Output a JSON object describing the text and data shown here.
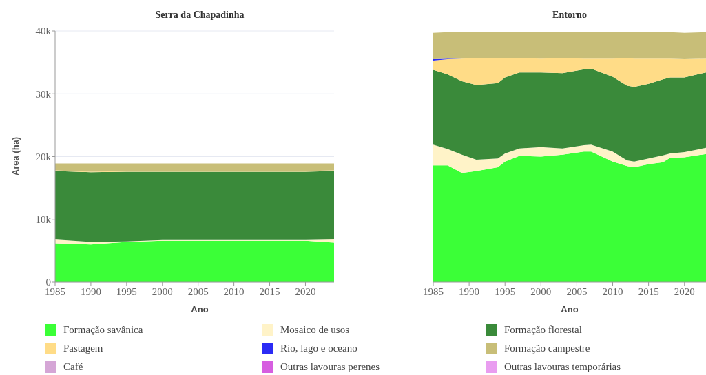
{
  "chart_data": [
    {
      "type": "area",
      "title": "Serra da Chapadinha",
      "xlabel": "Ano",
      "ylabel": "Area (ha)",
      "stacked": true,
      "grid": "y",
      "legend": "bottom",
      "xlim": [
        1985,
        2024
      ],
      "xticks": [
        1985,
        1990,
        1995,
        2000,
        2005,
        2010,
        2015,
        2020
      ],
      "ylim": [
        0,
        40000
      ],
      "yticks": [
        0,
        {
          "value": 10000,
          "label": "10k"
        },
        {
          "value": 20000,
          "label": "20k"
        },
        {
          "value": 30000,
          "label": "30k"
        },
        {
          "value": 40000,
          "label": "40k"
        }
      ],
      "x": [
        1985,
        1990,
        1995,
        2000,
        2005,
        2010,
        2015,
        2020,
        2024
      ],
      "series": [
        {
          "name": "Formação savânica",
          "color": "#3bff37",
          "values": [
            6200,
            6000,
            6400,
            6600,
            6600,
            6600,
            6600,
            6600,
            6300
          ]
        },
        {
          "name": "Mosaico de usos",
          "color": "#fff3c8",
          "values": [
            600,
            400,
            100,
            100,
            100,
            100,
            100,
            100,
            500
          ]
        },
        {
          "name": "Formação florestal",
          "color": "#3a8a3a",
          "values": [
            10900,
            11100,
            11100,
            10900,
            10900,
            10900,
            10900,
            10900,
            10900
          ]
        },
        {
          "name": "Pastagem",
          "color": "#ffdc87",
          "values": [
            100,
            100,
            100,
            100,
            100,
            100,
            100,
            100,
            100
          ]
        },
        {
          "name": "Rio, lago e oceano",
          "color": "#2b2bf5",
          "values": [
            null,
            null,
            null,
            null,
            null,
            null,
            null,
            null,
            null
          ]
        },
        {
          "name": "Formação campestre",
          "color": "#c8be78",
          "values": [
            1100,
            1300,
            1200,
            1200,
            1200,
            1200,
            1200,
            1200,
            1100
          ]
        },
        {
          "name": "Café",
          "color": "#d5a6d6",
          "values": [
            null,
            null,
            null,
            null,
            null,
            null,
            null,
            null,
            null
          ]
        },
        {
          "name": "Outras lavouras perenes",
          "color": "#d65ee0",
          "values": [
            null,
            null,
            null,
            null,
            null,
            null,
            null,
            null,
            null
          ]
        },
        {
          "name": "Outras lavouras temporárias",
          "color": "#e99df0",
          "values": [
            null,
            null,
            null,
            null,
            null,
            null,
            null,
            null,
            null
          ]
        }
      ]
    },
    {
      "type": "area",
      "title": "Entorno",
      "xlabel": "Ano",
      "stacked": true,
      "tick_labels": "x",
      "xlim": [
        1985,
        2023
      ],
      "xticks": [
        1985,
        1990,
        1995,
        2000,
        2005,
        2010,
        2015,
        2020
      ],
      "ylim": [
        0,
        40000
      ],
      "x": [
        1985,
        1987,
        1989,
        1991,
        1994,
        1995,
        1997,
        2000,
        2003,
        2006,
        2007,
        2010,
        2012,
        2013,
        2015,
        2017,
        2018,
        2020,
        2023
      ],
      "series": [
        {
          "color": "#3bff37",
          "values": [
            18600,
            18600,
            17400,
            17700,
            18300,
            19200,
            20100,
            20000,
            20300,
            20800,
            20800,
            19200,
            18500,
            18300,
            18800,
            19100,
            19800,
            19900,
            20400
          ]
        },
        {
          "color": "#fff3c8",
          "values": [
            3300,
            2600,
            2900,
            1800,
            1400,
            1300,
            1200,
            1500,
            1000,
            1000,
            1100,
            1600,
            900,
            900,
            900,
            1100,
            700,
            800,
            1000
          ]
        },
        {
          "color": "#3a8a3a",
          "values": [
            11900,
            11900,
            11700,
            11900,
            12000,
            12100,
            12100,
            11900,
            12000,
            12100,
            12100,
            11900,
            11900,
            11900,
            11900,
            12100,
            12100,
            11900,
            12000
          ]
        },
        {
          "color": "#ffdc87",
          "values": [
            1500,
            2400,
            3600,
            4300,
            4000,
            3100,
            2300,
            2200,
            2400,
            1700,
            1600,
            2900,
            4400,
            4500,
            4000,
            3300,
            3000,
            2900,
            2200
          ]
        },
        {
          "color": "#2b2bf5",
          "values": [
            200,
            100,
            0,
            0,
            0,
            0,
            0,
            0,
            0,
            0,
            0,
            0,
            0,
            0,
            0,
            0,
            0,
            0,
            0
          ]
        },
        {
          "color": "#c8be78",
          "values": [
            4200,
            4200,
            4200,
            4200,
            4200,
            4200,
            4200,
            4200,
            4200,
            4200,
            4200,
            4200,
            4200,
            4200,
            4200,
            4200,
            4200,
            4200,
            4200
          ]
        }
      ]
    }
  ]
}
